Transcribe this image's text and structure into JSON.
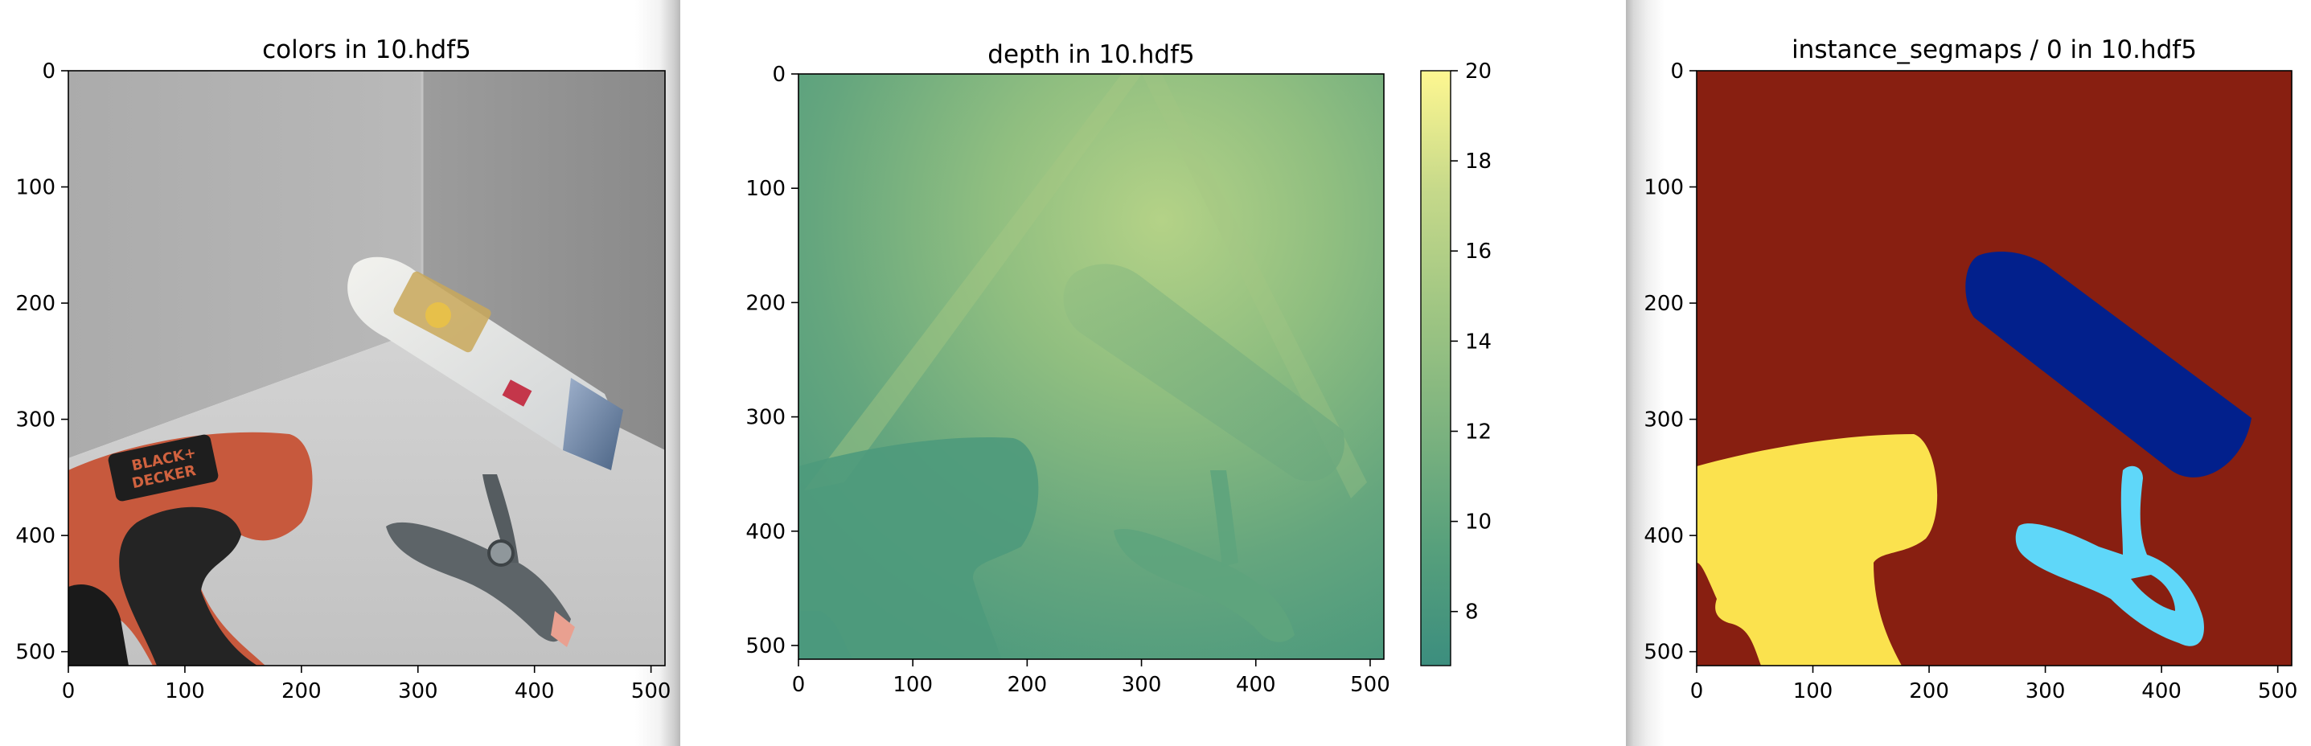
{
  "window": {
    "panel_bg": "#ffffff",
    "shadow_color": "#a8a8a8"
  },
  "chart_data": [
    {
      "type": "image",
      "title": "colors in 10.hdf5",
      "xlim": [
        0,
        512
      ],
      "ylim": [
        512,
        0
      ],
      "xticks": [
        "0",
        "100",
        "200",
        "300",
        "400",
        "500"
      ],
      "yticks": [
        "0",
        "100",
        "200",
        "300",
        "400",
        "500"
      ],
      "content": "rendered RGB scene: grey room corner with a black & orange cordless drill, a white and blue shampoo bottle and a grey spring clamp",
      "visible_text": [
        "BLACK+",
        "DECKER"
      ]
    },
    {
      "type": "heatmap",
      "title": "depth in 10.hdf5",
      "xlim": [
        0,
        512
      ],
      "ylim": [
        512,
        0
      ],
      "xticks": [
        "0",
        "100",
        "200",
        "300",
        "400",
        "500"
      ],
      "yticks": [
        "0",
        "100",
        "200",
        "300",
        "400",
        "500"
      ],
      "colorbar": {
        "ticks": [
          "8",
          "10",
          "12",
          "14",
          "16",
          "18",
          "20"
        ],
        "range": [
          6.8,
          20
        ],
        "colors": [
          "#3c8e7e",
          "#57a07c",
          "#7db37f",
          "#a0c683",
          "#c6d98a",
          "#fef791"
        ]
      }
    },
    {
      "type": "heatmap",
      "title": "instance_segmaps / 0 in 10.hdf5",
      "xlim": [
        0,
        512
      ],
      "ylim": [
        512,
        0
      ],
      "xticks": [
        "0",
        "100",
        "200",
        "300",
        "400",
        "500"
      ],
      "yticks": [
        "0",
        "100",
        "200",
        "300",
        "400",
        "500"
      ],
      "segments": [
        {
          "label": "background",
          "color": "#881f11"
        },
        {
          "label": "bottle",
          "color": "#02208c"
        },
        {
          "label": "drill",
          "color": "#fbe24e"
        },
        {
          "label": "clamp",
          "color": "#5fd7f9"
        }
      ]
    }
  ]
}
